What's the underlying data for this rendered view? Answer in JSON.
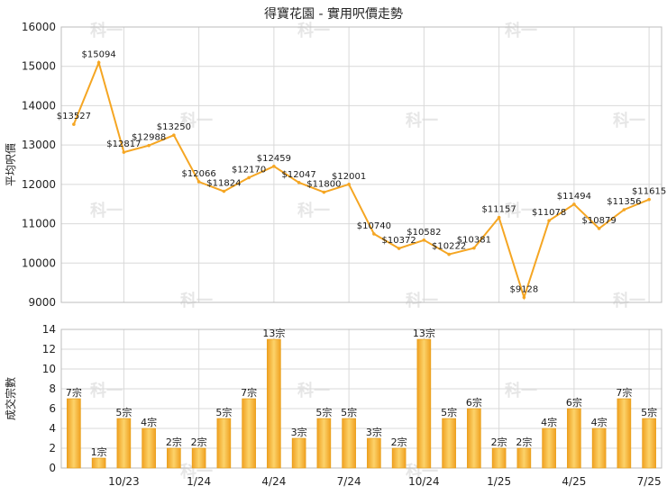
{
  "chart_data": [
    {
      "type": "line",
      "title": "得寶花園 - 實用呎價走勢",
      "ylabel": "平均呎價",
      "ylim": [
        9000,
        16000
      ],
      "yticks": [
        9000,
        10000,
        11000,
        12000,
        13000,
        14000,
        15000,
        16000
      ],
      "grid": true,
      "color": "#f5a623",
      "values": [
        13527,
        15094,
        12817,
        12988,
        13250,
        12066,
        11824,
        12170,
        12459,
        12047,
        11800,
        12001,
        10740,
        10372,
        10582,
        10222,
        10381,
        11157,
        9128,
        11078,
        11494,
        10879,
        11356,
        11615
      ],
      "labels": [
        "$13527",
        "$15094",
        "$12817",
        "$12988",
        "$13250",
        "$12066",
        "$11824",
        "$12170",
        "$12459",
        "$12047",
        "$11800",
        "$12001",
        "$10740",
        "$10372",
        "$10582",
        "$10222",
        "$10381",
        "$11157",
        "$9128",
        "$11078",
        "$11494",
        "$10879",
        "$11356",
        "$11615"
      ]
    },
    {
      "type": "bar",
      "ylabel": "成交宗數",
      "ylim": [
        0,
        14
      ],
      "yticks": [
        0,
        2,
        4,
        6,
        8,
        10,
        12,
        14
      ],
      "grid": true,
      "color": "#f5a623",
      "values": [
        7,
        1,
        5,
        4,
        2,
        2,
        5,
        7,
        13,
        3,
        5,
        5,
        3,
        2,
        13,
        5,
        6,
        2,
        2,
        4,
        6,
        4,
        7,
        5
      ],
      "labels": [
        "7宗",
        "1宗",
        "5宗",
        "4宗",
        "2宗",
        "2宗",
        "5宗",
        "7宗",
        "13宗",
        "3宗",
        "5宗",
        "5宗",
        "3宗",
        "2宗",
        "13宗",
        "5宗",
        "6宗",
        "2宗",
        "2宗",
        "4宗",
        "6宗",
        "4宗",
        "7宗",
        "5宗"
      ],
      "xtick_labels": [
        "10/23",
        "1/24",
        "4/24",
        "7/24",
        "10/24",
        "1/25",
        "4/25",
        "7/25"
      ],
      "xtick_index": [
        2,
        5,
        8,
        11,
        14,
        17,
        20,
        23
      ]
    }
  ],
  "watermark": "科一"
}
